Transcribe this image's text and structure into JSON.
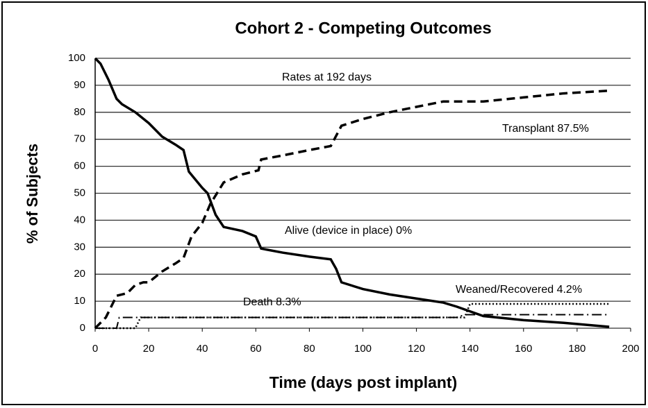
{
  "chart_data": {
    "type": "line",
    "title": "Cohort 2 -  Competing Outcomes",
    "x_label": "Time (days post implant)",
    "y_label": "% of Subjects",
    "xlim": [
      0,
      200
    ],
    "xticks": [
      0,
      20,
      40,
      60,
      80,
      100,
      120,
      140,
      160,
      180,
      200
    ],
    "ylim": [
      0,
      100
    ],
    "yticks": [
      0,
      10,
      20,
      30,
      40,
      50,
      60,
      70,
      80,
      90,
      100
    ],
    "grid": true,
    "annotations": [
      "Rates at 192 days",
      "Transplant 87.5%",
      "Alive (device in place) 0%",
      "Death 8.3%",
      "Weaned/Recovered 4.2%"
    ],
    "series": [
      {
        "color": "#000000",
        "dash": "solid",
        "x": [
          0,
          2,
          5,
          8,
          10,
          15,
          20,
          25,
          30,
          33,
          35,
          40,
          42,
          45,
          48,
          55,
          60,
          62,
          70,
          80,
          88,
          90,
          92,
          100,
          110,
          120,
          130,
          135,
          145,
          160,
          175,
          192
        ],
        "values": [
          100,
          98,
          92,
          85,
          83,
          80,
          76,
          71,
          68,
          66,
          58,
          52,
          50,
          42,
          37.5,
          36,
          34,
          29.5,
          28,
          26.5,
          25.5,
          22,
          17,
          14.5,
          12.5,
          11,
          9.5,
          8,
          4.5,
          3,
          2,
          0.5
        ]
      },
      {
        "color": "#000000",
        "dash": "dashed",
        "x": [
          0,
          4,
          8,
          12,
          15,
          18,
          20,
          25,
          30,
          33,
          36,
          40,
          43,
          48,
          55,
          61,
          62,
          70,
          80,
          88,
          92,
          100,
          110,
          120,
          130,
          145,
          160,
          175,
          192
        ],
        "values": [
          0,
          4,
          12,
          13,
          16,
          17,
          17,
          21,
          24,
          26,
          34,
          39,
          46,
          54,
          57,
          58.5,
          62.5,
          64,
          66,
          67.5,
          75,
          77.5,
          80,
          82,
          84,
          84,
          85.5,
          87,
          88
        ]
      },
      {
        "color": "#000000",
        "dash": "dashdot",
        "x": [
          0,
          8,
          9,
          135,
          138,
          192
        ],
        "values": [
          0,
          0,
          4,
          4,
          5,
          5
        ]
      },
      {
        "color": "#000000",
        "dash": "dotted",
        "x": [
          0,
          15,
          17,
          138,
          140,
          192
        ],
        "values": [
          0,
          0,
          4,
          4,
          9,
          9
        ]
      }
    ]
  }
}
